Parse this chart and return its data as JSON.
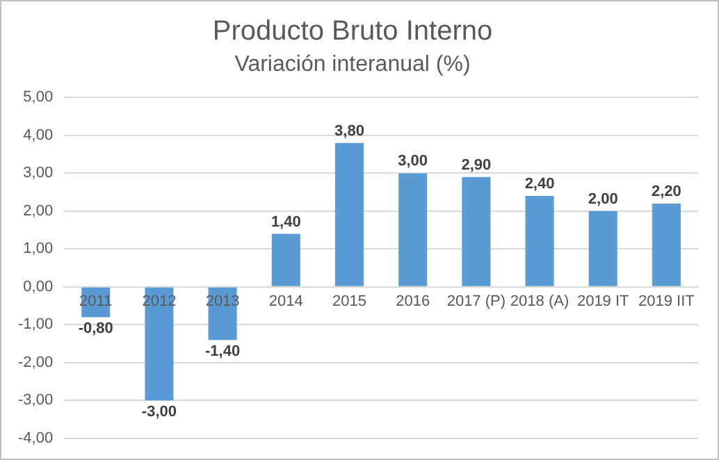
{
  "chart_data": {
    "type": "bar",
    "title": "Producto Bruto Interno",
    "subtitle": "Variación interanual (%)",
    "categories": [
      "2011",
      "2012",
      "2013",
      "2014",
      "2015",
      "2016",
      "2017 (P)",
      "2018 (A)",
      "2019 IT",
      "2019 IIT"
    ],
    "values": [
      -0.8,
      -3.0,
      -1.4,
      1.4,
      3.8,
      3.0,
      2.9,
      2.4,
      2.0,
      2.2
    ],
    "value_labels": [
      "-0,80",
      "-3,00",
      "-1,40",
      "1,40",
      "3,80",
      "3,00",
      "2,90",
      "2,40",
      "2,00",
      "2,20"
    ],
    "color": "#5b9bd5",
    "ylim": [
      -4,
      5
    ],
    "yticks": [
      {
        "value": -4,
        "label": "-4,00"
      },
      {
        "value": -3,
        "label": "-3,00"
      },
      {
        "value": -2,
        "label": "-2,00"
      },
      {
        "value": -1,
        "label": "-1,00"
      },
      {
        "value": 0,
        "label": "0,00"
      },
      {
        "value": 1,
        "label": "1,00"
      },
      {
        "value": 2,
        "label": "2,00"
      },
      {
        "value": 3,
        "label": "3,00"
      },
      {
        "value": 4,
        "label": "4,00"
      },
      {
        "value": 5,
        "label": "5,00"
      }
    ],
    "grid": "y",
    "legend": false
  }
}
